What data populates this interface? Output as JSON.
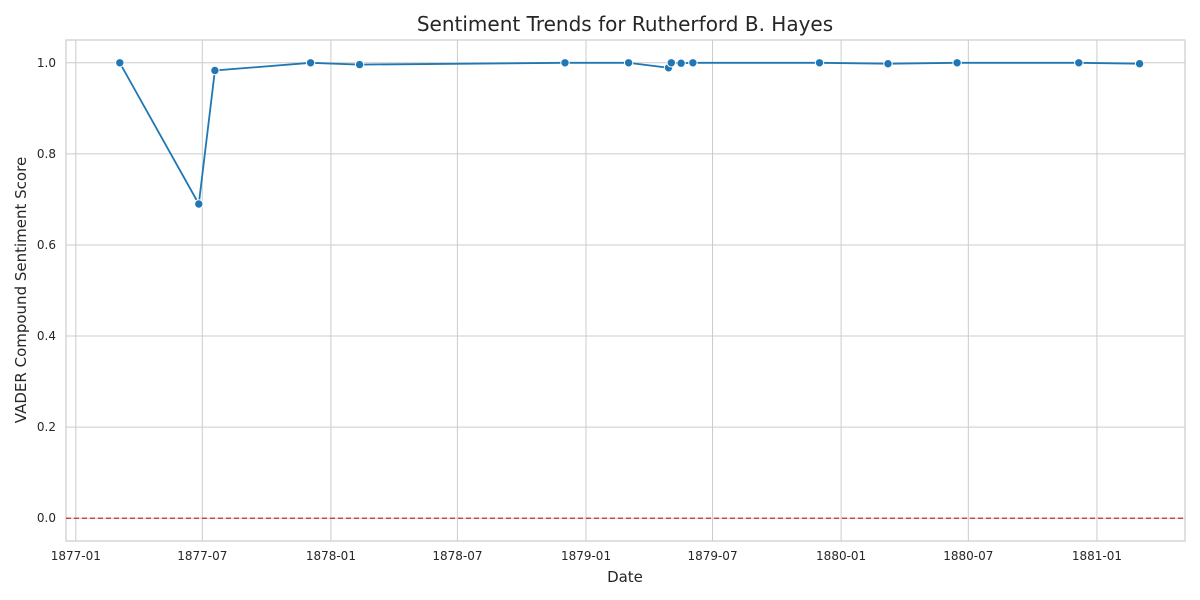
{
  "chart_data": {
    "type": "line",
    "title": "Sentiment Trends for Rutherford B. Hayes",
    "xlabel": "Date",
    "ylabel": "VADER Compound Sentiment Score",
    "x_type": "date",
    "xlim": [
      "1876-12-18",
      "1881-05-07"
    ],
    "ylim": [
      -0.05,
      1.05
    ],
    "x_ticks": [
      "1877-01",
      "1877-07",
      "1878-01",
      "1878-07",
      "1879-01",
      "1879-07",
      "1880-01",
      "1880-07",
      "1881-01"
    ],
    "y_ticks": [
      "0.0",
      "0.2",
      "0.4",
      "0.6",
      "0.8",
      "1.0"
    ],
    "grid": true,
    "series": [
      {
        "color": "#1f77b4",
        "marker": "circle",
        "points": [
          {
            "x": "1877-03-05",
            "y": 1.0
          },
          {
            "x": "1877-06-26",
            "y": 0.69
          },
          {
            "x": "1877-07-19",
            "y": 0.983
          },
          {
            "x": "1877-12-03",
            "y": 1.0
          },
          {
            "x": "1878-02-11",
            "y": 0.996
          },
          {
            "x": "1878-12-02",
            "y": 1.0
          },
          {
            "x": "1879-03-03",
            "y": 1.0
          },
          {
            "x": "1879-04-29",
            "y": 0.989
          },
          {
            "x": "1879-05-03",
            "y": 1.0
          },
          {
            "x": "1879-05-17",
            "y": 0.999
          },
          {
            "x": "1879-06-03",
            "y": 1.0
          },
          {
            "x": "1879-12-01",
            "y": 1.0
          },
          {
            "x": "1880-03-08",
            "y": 0.998
          },
          {
            "x": "1880-06-15",
            "y": 1.0
          },
          {
            "x": "1880-12-06",
            "y": 1.0
          },
          {
            "x": "1881-03-03",
            "y": 0.998
          }
        ]
      }
    ],
    "reference_line": {
      "y": 0.0,
      "color": "#d62728",
      "style": "dashed"
    }
  }
}
